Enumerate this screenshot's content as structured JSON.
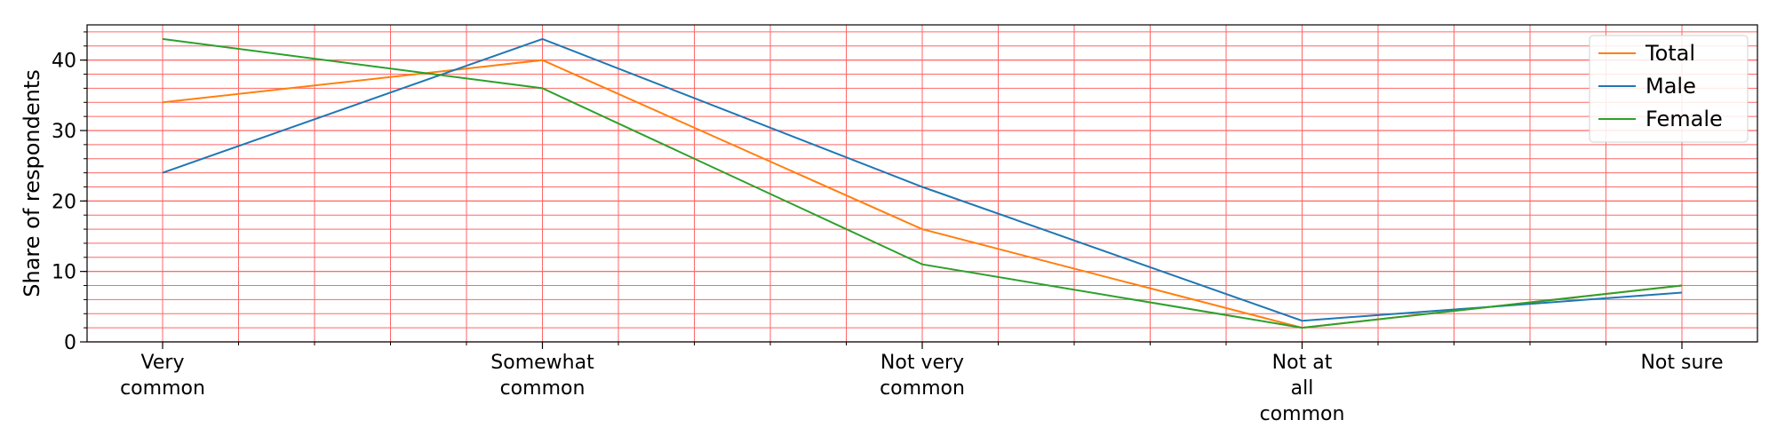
{
  "chart_data": {
    "type": "line",
    "categories": [
      [
        "Very",
        "common"
      ],
      [
        "Somewhat",
        "common"
      ],
      [
        "Not very",
        "common"
      ],
      [
        "Not at",
        "all",
        "common"
      ],
      [
        "Not sure"
      ]
    ],
    "series": [
      {
        "name": "Total",
        "color": "#ff7f0e",
        "values": [
          34,
          40,
          16,
          2,
          8
        ]
      },
      {
        "name": "Male",
        "color": "#1f77b4",
        "values": [
          24,
          43,
          22,
          3,
          7
        ]
      },
      {
        "name": "Female",
        "color": "#2ca02c",
        "values": [
          43,
          36,
          11,
          2,
          8
        ]
      }
    ],
    "ylabel": "Share of respondents",
    "xlabel": "",
    "ylim": [
      0,
      45
    ],
    "yticks": [
      0,
      10,
      20,
      30,
      40
    ],
    "minor_ytick_step": 2,
    "minor_xticks_between": 4,
    "grid": true,
    "grid_color": "#ff6666",
    "legend_position": "top-right"
  }
}
